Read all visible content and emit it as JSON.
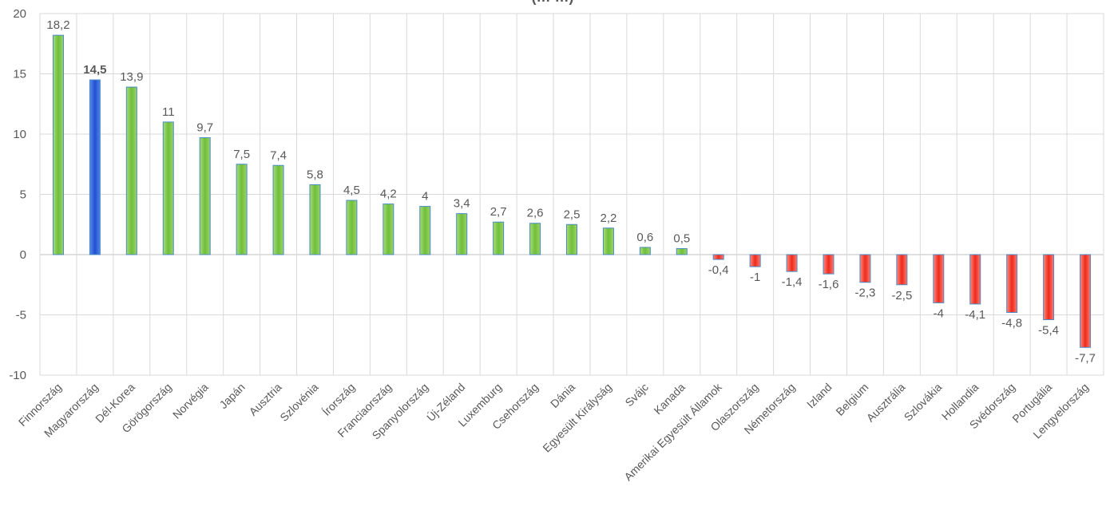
{
  "chart_data": {
    "type": "bar",
    "title": "(… …)",
    "ylim": [
      -10,
      20
    ],
    "yticks": [
      20,
      15,
      10,
      5,
      0,
      -5,
      -10
    ],
    "grid": true,
    "categories": [
      "Finnország",
      "Magyarország",
      "Dél-Korea",
      "Görögország",
      "Norvégia",
      "Japán",
      "Ausztria",
      "Szlovénia",
      "Írország",
      "Franciaország",
      "Spanyolország",
      "Új-Zéland",
      "Luxemburg",
      "Csehország",
      "Dánia",
      "Egyesült Királyság",
      "Svájc",
      "Kanada",
      "Amerikai Egyesült Államok",
      "Olaszország",
      "Németország",
      "Izland",
      "Belgium",
      "Ausztrália",
      "Szlovákia",
      "Hollandia",
      "Svédország",
      "Portugália",
      "Lengyelország"
    ],
    "values": [
      18.2,
      14.5,
      13.9,
      11,
      9.7,
      7.5,
      7.4,
      5.8,
      4.5,
      4.2,
      4,
      3.4,
      2.7,
      2.6,
      2.5,
      2.2,
      0.6,
      0.5,
      -0.4,
      -1,
      -1.4,
      -1.6,
      -2.3,
      -2.5,
      -4,
      -4.1,
      -4.8,
      -5.4,
      -7.7
    ],
    "value_labels": [
      "18,2",
      "14,5",
      "13,9",
      "11",
      "9,7",
      "7,5",
      "7,4",
      "5,8",
      "4,5",
      "4,2",
      "4",
      "3,4",
      "2,7",
      "2,6",
      "2,5",
      "2,2",
      "0,6",
      "0,5",
      "-0,4",
      "-1",
      "-1,4",
      "-1,6",
      "-2,3",
      "-2,5",
      "-4",
      "-4,1",
      "-4,8",
      "-5,4",
      "-7,7"
    ],
    "highlight_category": "Magyarország",
    "colors": {
      "positive": "#7cc444",
      "highlight": "#2f62d6",
      "negative": "#ef3b2c",
      "bar_border": "#4a8ac4"
    }
  }
}
